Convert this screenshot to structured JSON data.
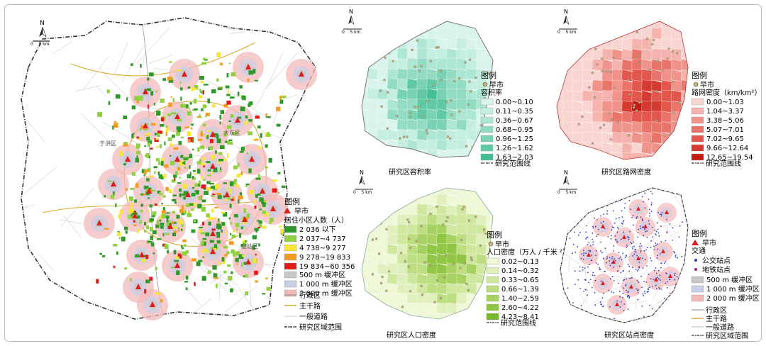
{
  "north_label": "N",
  "scale_label": "0    5 km",
  "maps": {
    "main": {
      "legend_title": "图例",
      "market_label": "早市",
      "population_title": "居住小区人数（人）",
      "population_classes": [
        "2 036 以下",
        "2 037~4 737",
        "4 738~9 277",
        "9 278~19 833",
        "19 834~60 356"
      ],
      "population_colors": [
        "#2e9a2a",
        "#8fd13f",
        "#f7e633",
        "#f59a1e",
        "#e01b1b"
      ],
      "buffers": [
        "500 m 缓冲区",
        "1 000 m 缓冲区",
        "2 000 m 缓冲区"
      ],
      "buffer_colors": [
        "#c7c7c7",
        "#c9cde6",
        "#f3b9b9"
      ],
      "district_label": "行政区",
      "main_road_label": "主干路",
      "road_label": "一般道路",
      "boundary_label": "研究区域范围",
      "place_labels": [
        "于洪区",
        "大东区",
        "皇姑区"
      ]
    },
    "far": {
      "caption": "研究区容积率",
      "legend_title": "图例",
      "market_label": "早市",
      "class_title": "容积率",
      "classes": [
        "0.00~0.10",
        "0.11~0.35",
        "0.36~0.67",
        "0.68~0.95",
        "0.96~1.25",
        "1.26~1.62",
        "1.63~2.03"
      ],
      "colors": [
        "#d8f4ec",
        "#c4eedf",
        "#ade6d2",
        "#93dcc3",
        "#7ad2b4",
        "#60c8a5",
        "#45bd95"
      ],
      "boundary_label": "研究范围线"
    },
    "road": {
      "caption": "研究区路网密度",
      "legend_title": "图例",
      "market_label": "早市",
      "class_title": "路网密度（km/km²）",
      "classes": [
        "0.00~1.03",
        "1.04~3.37",
        "3.38~5.06",
        "5.07~7.01",
        "7.02~9.65",
        "9.66~12.64",
        "12.65~19.54"
      ],
      "colors": [
        "#f9d5d2",
        "#f5b3ad",
        "#f0938b",
        "#ea736a",
        "#e2564c",
        "#d53a30",
        "#c41c14"
      ],
      "boundary_label": "研究范围线"
    },
    "pop": {
      "caption": "研究区人口密度",
      "legend_title": "图例",
      "market_label": "早市",
      "class_title": "人口密度（万人 / 千米 ²）",
      "classes": [
        "0.02~0.13",
        "0.14~0.32",
        "0.33~0.65",
        "0.66~1.39",
        "1.40~2.59",
        "2.60~4.22",
        "4.23~8.41"
      ],
      "colors": [
        "#eef7d6",
        "#e0f0bd",
        "#cfe79f",
        "#bcdd80",
        "#a7d262",
        "#90c545",
        "#79b72a"
      ],
      "boundary_label": "研究范围线"
    },
    "stations": {
      "caption": "研究区站点密度",
      "legend_title": "图例",
      "market_label": "早市",
      "transport_title": "交通",
      "bus_label": "公交站点",
      "metro_label": "地铁站点",
      "buffers": [
        "500 m 缓冲区",
        "1 000 m 缓冲区",
        "2 000 m 缓冲区"
      ],
      "buffer_colors": [
        "#c7c7c7",
        "#c9cde6",
        "#f3b9b9"
      ],
      "district_label": "行政区",
      "main_road_label": "主干路",
      "road_label": "一般道路",
      "boundary_label": "研究区域范围"
    }
  }
}
